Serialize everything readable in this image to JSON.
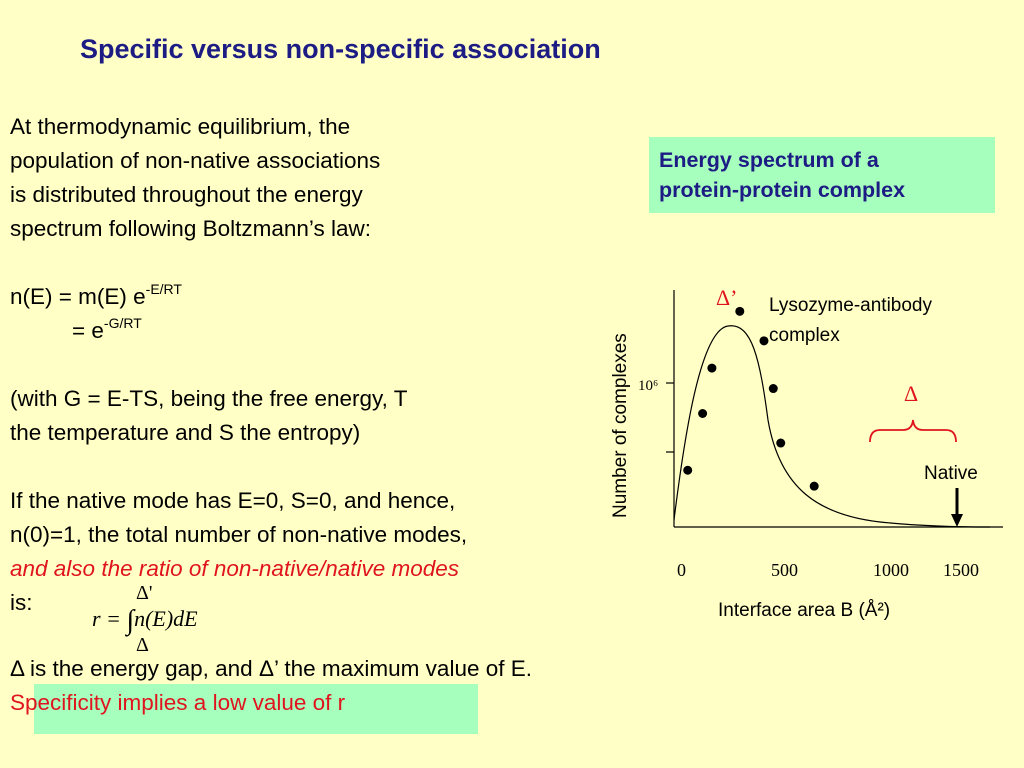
{
  "title": "Specific versus non-specific association",
  "body": {
    "intro_lines": [
      "At thermodynamic equilibrium, the",
      "population of non-native associations",
      "is distributed throughout the energy",
      "spectrum following Boltzmann’s law:"
    ],
    "eq1_main": "n(E) = m(E) e",
    "eq1_sup": "-E/RT",
    "eq2_main": "= e",
    "eq2_sup": "-G/RT",
    "with_line1": "(with G = E-TS, being the free energy, T",
    "with_line2": "the temperature and S the entropy)",
    "native_line1": "If the native mode has E=0, S=0, and hence,",
    "native_line2": "n(0)=1, the total number of non-native modes,",
    "ratio_line": "and also the ratio of non-native/native modes",
    "is_line": "is:"
  },
  "formula": {
    "upper_limit": "Δ'",
    "lhs": "r = ",
    "integral": "∫",
    "integrand": "n(E)dE",
    "lower_limit": "Δ"
  },
  "gap_text": "Δ is the energy gap, and Δ’ the maximum value of E.",
  "conclusion": "Specificity implies a low value of r",
  "spectrum_box": {
    "line1": "Energy spectrum of a",
    "line2": "protein-protein complex"
  },
  "colors": {
    "background": "#ffffc6",
    "title": "#1c1c84",
    "highlight_green": "#a7ffbe",
    "emphasis_red": "#e0141e"
  },
  "chart_data": {
    "type": "line",
    "xlabel": "Interface area B (Å²)",
    "ylabel": "Number of complexes",
    "x_tick_labels": [
      "0",
      "500",
      "1000",
      "1500"
    ],
    "y_tick_label": "10⁶",
    "legend_label_line1": "Lysozyme-antibody",
    "legend_label_line2": "complex",
    "delta_prime_label": "Δ’",
    "delta_label": "Δ",
    "native_label": "Native",
    "points": [
      {
        "x": 20,
        "y": 0.25
      },
      {
        "x": 100,
        "y": 0.5
      },
      {
        "x": 150,
        "y": 0.7
      },
      {
        "x": 300,
        "y": 0.95
      },
      {
        "x": 430,
        "y": 0.82
      },
      {
        "x": 480,
        "y": 0.61
      },
      {
        "x": 520,
        "y": 0.37
      },
      {
        "x": 700,
        "y": 0.18
      }
    ]
  }
}
